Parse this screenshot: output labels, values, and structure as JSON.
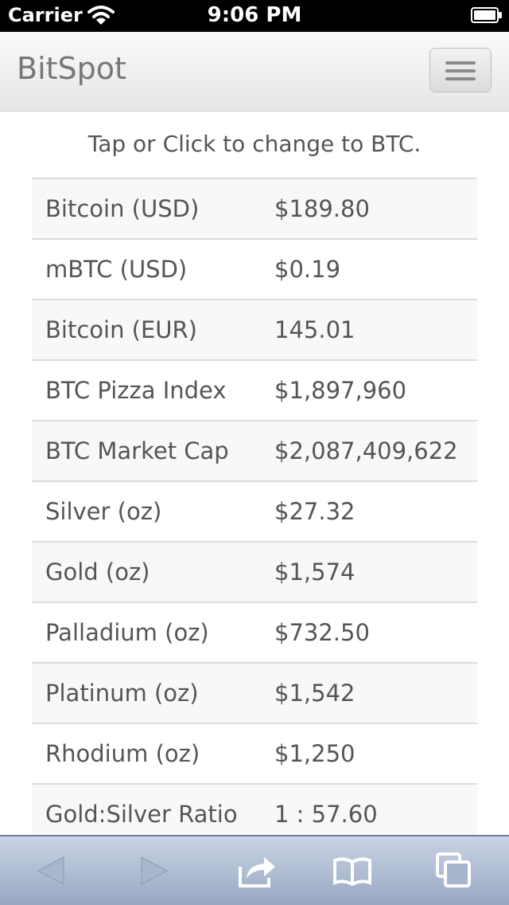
{
  "status_bar": {
    "carrier": "Carrier",
    "time": "9:06 PM",
    "wifi_icon": "wifi-icon",
    "battery_icon": "battery-icon"
  },
  "navbar": {
    "brand": "BitSpot",
    "menu_icon": "hamburger-icon"
  },
  "hint": "Tap or Click to change to BTC.",
  "rows": [
    {
      "label": "Bitcoin (USD)",
      "value": "$189.80"
    },
    {
      "label": "mBTC (USD)",
      "value": "$0.19"
    },
    {
      "label": "Bitcoin (EUR)",
      "value": "145.01"
    },
    {
      "label": "BTC Pizza Index",
      "value": "$1,897,960"
    },
    {
      "label": "BTC Market Cap",
      "value": "$2,087,409,622"
    },
    {
      "label": "Silver (oz)",
      "value": "$27.32"
    },
    {
      "label": "Gold (oz)",
      "value": "$1,574"
    },
    {
      "label": "Palladium (oz)",
      "value": "$732.50"
    },
    {
      "label": "Platinum (oz)",
      "value": "$1,542"
    },
    {
      "label": "Rhodium (oz)",
      "value": "$1,250"
    },
    {
      "label": "Gold:Silver Ratio",
      "value": "1 : 57.60"
    }
  ],
  "toolbar": {
    "icons": [
      "back-arrow-icon",
      "forward-arrow-icon",
      "share-icon",
      "bookmarks-icon",
      "tabs-icon"
    ]
  }
}
